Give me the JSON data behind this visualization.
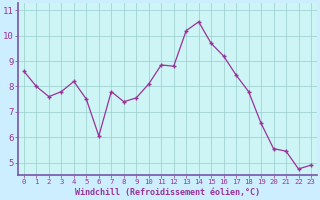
{
  "x": [
    0,
    1,
    2,
    3,
    4,
    5,
    6,
    7,
    8,
    9,
    10,
    11,
    12,
    13,
    14,
    15,
    16,
    17,
    18,
    19,
    20,
    21,
    22,
    23
  ],
  "y": [
    8.6,
    8.0,
    7.6,
    7.8,
    8.2,
    7.5,
    6.05,
    7.8,
    7.4,
    7.55,
    8.1,
    8.85,
    8.8,
    10.2,
    10.55,
    9.7,
    9.2,
    8.45,
    7.8,
    6.55,
    5.55,
    5.45,
    4.75,
    4.9
  ],
  "line_color": "#993399",
  "marker": "+",
  "bg_color": "#cceeff",
  "plot_bg_color": "#cdf5f5",
  "grid_color": "#99cccc",
  "xlabel": "Windchill (Refroidissement éolien,°C)",
  "xlabel_color": "#993399",
  "tick_color": "#993399",
  "label_color": "#993399",
  "ylim": [
    4.5,
    11.3
  ],
  "yticks": [
    5,
    6,
    7,
    8,
    9,
    10,
    11
  ],
  "xticks": [
    0,
    1,
    2,
    3,
    4,
    5,
    6,
    7,
    8,
    9,
    10,
    11,
    12,
    13,
    14,
    15,
    16,
    17,
    18,
    19,
    20,
    21,
    22,
    23
  ],
  "spine_color": "#7755aa",
  "bottom_bar_color": "#7755aa"
}
